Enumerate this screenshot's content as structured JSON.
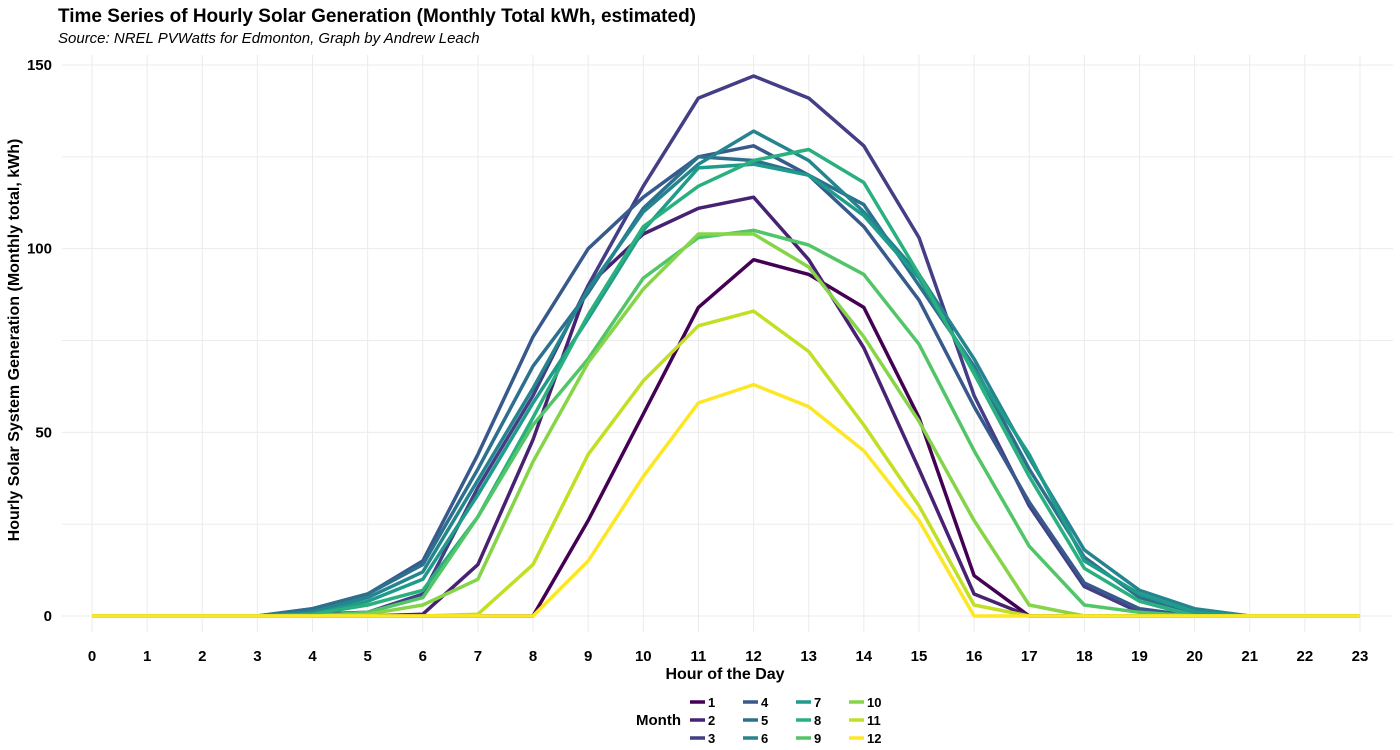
{
  "chart_data": {
    "type": "line",
    "title": "Time Series of Hourly Solar Generation (Monthly Total kWh, estimated)",
    "subtitle": "Source: NREL PVWatts for Edmonton, Graph by Andrew Leach",
    "xlabel": "Hour of the Day",
    "ylabel": "Hourly Solar System Generation (Monthly total, kWh)",
    "x": [
      0,
      1,
      2,
      3,
      4,
      5,
      6,
      7,
      8,
      9,
      10,
      11,
      12,
      13,
      14,
      15,
      16,
      17,
      18,
      19,
      20,
      21,
      22,
      23
    ],
    "xlim": [
      0,
      23
    ],
    "ylim": [
      0,
      150
    ],
    "yticks": [
      0,
      50,
      100,
      150
    ],
    "grid": true,
    "legend_title": "Month",
    "legend_position": "bottom",
    "series": [
      {
        "name": "1",
        "color": "#440154",
        "values": [
          0,
          0,
          0,
          0,
          0,
          0,
          0,
          0,
          0,
          26,
          55,
          84,
          97,
          93,
          84,
          54,
          11,
          0,
          0,
          0,
          0,
          0,
          0,
          0
        ]
      },
      {
        "name": "2",
        "color": "#482173",
        "values": [
          0,
          0,
          0,
          0,
          0,
          0,
          0.5,
          14,
          48,
          90,
          104,
          111,
          114,
          97,
          73,
          40,
          6,
          0,
          0,
          0,
          0,
          0,
          0,
          0
        ]
      },
      {
        "name": "3",
        "color": "#433e85",
        "values": [
          0,
          0,
          0,
          0,
          0.5,
          1,
          6,
          35,
          60,
          90,
          117,
          141,
          147,
          141,
          128,
          103,
          60,
          30,
          8,
          1,
          0,
          0,
          0,
          0
        ]
      },
      {
        "name": "4",
        "color": "#38598c",
        "values": [
          0,
          0,
          0,
          0,
          2,
          6,
          15,
          44,
          76,
          100,
          114,
          125,
          128,
          120,
          106,
          86,
          57,
          31,
          9,
          2,
          0,
          0,
          0,
          0
        ]
      },
      {
        "name": "5",
        "color": "#2d708e",
        "values": [
          0,
          0,
          0,
          0,
          2,
          6,
          14,
          40,
          68,
          88,
          111,
          125,
          124,
          120,
          112,
          90,
          68,
          40,
          16,
          5,
          1,
          0,
          0,
          0
        ]
      },
      {
        "name": "6",
        "color": "#25858e",
        "values": [
          0,
          0,
          0,
          0,
          1,
          5,
          12,
          37,
          62,
          89,
          110,
          123,
          132,
          124,
          110,
          93,
          70,
          43,
          18,
          7,
          2,
          0,
          0,
          0
        ]
      },
      {
        "name": "7",
        "color": "#1e9b8a",
        "values": [
          0,
          0,
          0,
          0,
          0.5,
          4,
          10,
          33,
          58,
          81,
          105,
          122,
          123,
          120,
          109,
          92,
          67,
          44,
          15,
          6,
          1,
          0,
          0,
          0
        ]
      },
      {
        "name": "8",
        "color": "#2ab07f",
        "values": [
          0,
          0,
          0,
          0,
          0.5,
          3,
          7,
          27,
          54,
          82,
          106,
          117,
          124,
          127,
          118,
          93,
          66,
          38,
          13,
          4,
          0,
          0,
          0,
          0
        ]
      },
      {
        "name": "9",
        "color": "#52c569",
        "values": [
          0,
          0,
          0,
          0,
          0,
          1,
          5,
          27,
          52,
          70,
          92,
          103,
          105,
          101,
          93,
          74,
          45,
          19,
          3,
          1,
          0,
          0,
          0,
          0
        ]
      },
      {
        "name": "10",
        "color": "#86d549",
        "values": [
          0,
          0,
          0,
          0,
          0,
          0.5,
          3,
          10,
          42,
          69,
          89,
          104,
          104,
          95,
          76,
          53,
          26,
          3,
          0,
          0,
          0,
          0,
          0,
          0
        ]
      },
      {
        "name": "11",
        "color": "#c2df23",
        "values": [
          0,
          0,
          0,
          0,
          0,
          0,
          0,
          0.5,
          14,
          44,
          64,
          79,
          83,
          72,
          52,
          30,
          3,
          0,
          0,
          0,
          0,
          0,
          0,
          0
        ]
      },
      {
        "name": "12",
        "color": "#fde725",
        "values": [
          0,
          0,
          0,
          0,
          0,
          0,
          0,
          0,
          0,
          15,
          38,
          58,
          63,
          57,
          45,
          26,
          0,
          0,
          0,
          0,
          0,
          0,
          0,
          0
        ]
      }
    ]
  }
}
